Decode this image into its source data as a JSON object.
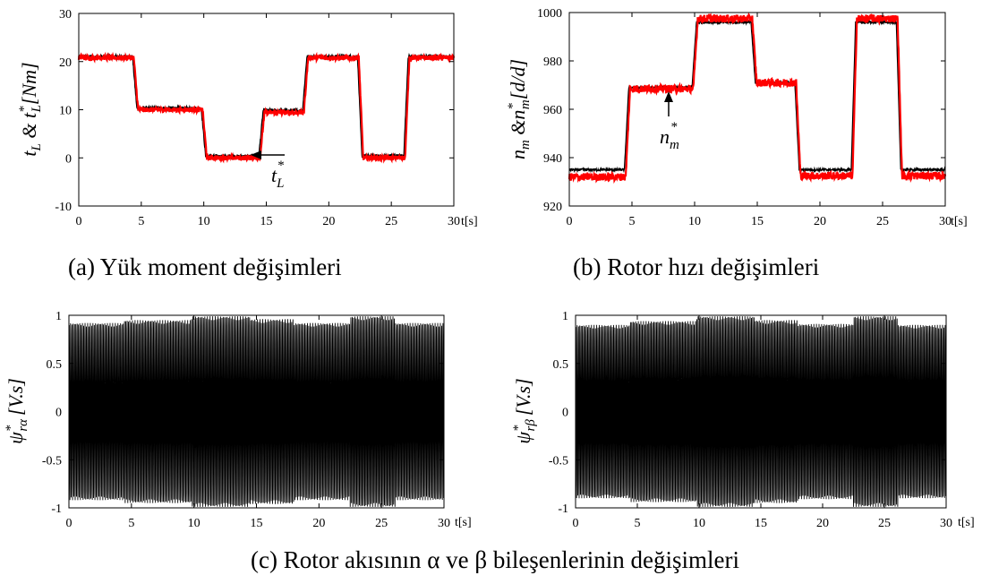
{
  "chart_data": [
    {
      "type": "line",
      "id": "a",
      "caption": "(a) Yük moment değişimleri",
      "ylabel": "t_L & t_L^*[Nm]",
      "xlabel": "t[s]",
      "xlim": [
        0,
        30
      ],
      "ylim": [
        -10,
        30
      ],
      "xticks": [
        "0",
        "5",
        "10",
        "15",
        "20",
        "25",
        "30"
      ],
      "yticks": [
        "-10",
        "0",
        "10",
        "20",
        "30"
      ],
      "annotation": "t_L^*",
      "series": [
        {
          "color": "#000000",
          "noise": 0.4,
          "steps": [
            [
              0,
              21
            ],
            [
              4.3,
              10.3
            ],
            [
              9.8,
              0.3
            ],
            [
              14.4,
              9.8
            ],
            [
              17.9,
              21
            ],
            [
              22.3,
              0.4
            ],
            [
              26.0,
              21
            ]
          ]
        },
        {
          "color": "#ff0000",
          "noise": 0.5,
          "steps": [
            [
              0,
              20.8
            ],
            [
              4.4,
              10.0
            ],
            [
              9.9,
              0
            ],
            [
              14.5,
              9.4
            ],
            [
              18.0,
              20.8
            ],
            [
              22.4,
              0
            ],
            [
              26.1,
              20.8
            ]
          ]
        }
      ]
    },
    {
      "type": "line",
      "id": "b",
      "caption": "(b) Rotor hızı değişimleri",
      "ylabel": "n_m &n_m^*[d/d]",
      "xlabel": "t[s]",
      "xlim": [
        0,
        30
      ],
      "ylim": [
        920,
        1000
      ],
      "xticks": [
        "0",
        "5",
        "10",
        "15",
        "20",
        "25",
        "30"
      ],
      "yticks": [
        "920",
        "940",
        "960",
        "980",
        "1000"
      ],
      "annotation": "n_m^*",
      "series": [
        {
          "color": "#000000",
          "noise": 0.5,
          "steps": [
            [
              0,
              935
            ],
            [
              4.4,
              969
            ],
            [
              9.8,
              996
            ],
            [
              14.5,
              971
            ],
            [
              18.0,
              935
            ],
            [
              22.5,
              996
            ],
            [
              26.1,
              935
            ]
          ]
        },
        {
          "color": "#ff0000",
          "noise": 1.6,
          "steps": [
            [
              0,
              932
            ],
            [
              4.5,
              968.5
            ],
            [
              9.9,
              997.5
            ],
            [
              14.6,
              971
            ],
            [
              18.1,
              932.5
            ],
            [
              22.6,
              997.5
            ],
            [
              26.2,
              932.5
            ]
          ]
        }
      ]
    },
    {
      "type": "line",
      "id": "c1",
      "ylabel": "ψ_rα^* [V.s]",
      "xlabel": "t[s]",
      "xlim": [
        0,
        30
      ],
      "ylim": [
        -1,
        1
      ],
      "xticks": [
        "0",
        "5",
        "10",
        "15",
        "20",
        "25",
        "30"
      ],
      "yticks": [
        "-1",
        "-0.5",
        "0",
        "0.5",
        "1"
      ],
      "series": [
        {
          "color": "#000000",
          "frequency_hz": 9.5,
          "amplitude_steps": [
            [
              0,
              0.92
            ],
            [
              4.4,
              0.95
            ],
            [
              9.8,
              0.99
            ],
            [
              14.5,
              0.96
            ],
            [
              18.0,
              0.92
            ],
            [
              22.5,
              0.99
            ],
            [
              26.1,
              0.92
            ]
          ]
        }
      ]
    },
    {
      "type": "line",
      "id": "c2",
      "ylabel": "ψ_rβ^* [V.s]",
      "xlabel": "t[s]",
      "xlim": [
        0,
        30
      ],
      "ylim": [
        -1,
        1
      ],
      "xticks": [
        "0",
        "5",
        "10",
        "15",
        "20",
        "25",
        "30"
      ],
      "yticks": [
        "-1",
        "-0.5",
        "0",
        "0.5",
        "1"
      ],
      "series": [
        {
          "color": "#000000",
          "frequency_hz": 9.5,
          "amplitude_steps": [
            [
              0,
              0.9
            ],
            [
              4.4,
              0.94
            ],
            [
              9.8,
              0.99
            ],
            [
              14.5,
              0.95
            ],
            [
              18.0,
              0.91
            ],
            [
              22.5,
              0.99
            ],
            [
              26.1,
              0.9
            ]
          ]
        }
      ]
    }
  ],
  "captions": {
    "a": "(a) Yük moment değişimleri",
    "b": "(b) Rotor hızı değişimleri",
    "c": "(c) Rotor akısının α ve β bileşenlerinin değişimleri"
  },
  "labels": {
    "a": {
      "main": "t",
      "sub": "L",
      "amp": " & t",
      "sub2": "L",
      "sup2": "*",
      "unit": "[Nm]",
      "ann_main": "t",
      "ann_sub": "L",
      "ann_sup": "*"
    },
    "b": {
      "main": "n",
      "sub": "m",
      "amp": " &n",
      "sub2": "m",
      "sup2": "*",
      "unit": "[d/d]",
      "ann_main": "n",
      "ann_sub": "m",
      "ann_sup": "*"
    },
    "c1": {
      "main": "ψ",
      "sup": "*",
      "sub": "rα",
      "unit": "[V.s]"
    },
    "c2": {
      "main": "ψ",
      "sup": "*",
      "sub": "rβ",
      "unit": "[V.s]"
    }
  }
}
